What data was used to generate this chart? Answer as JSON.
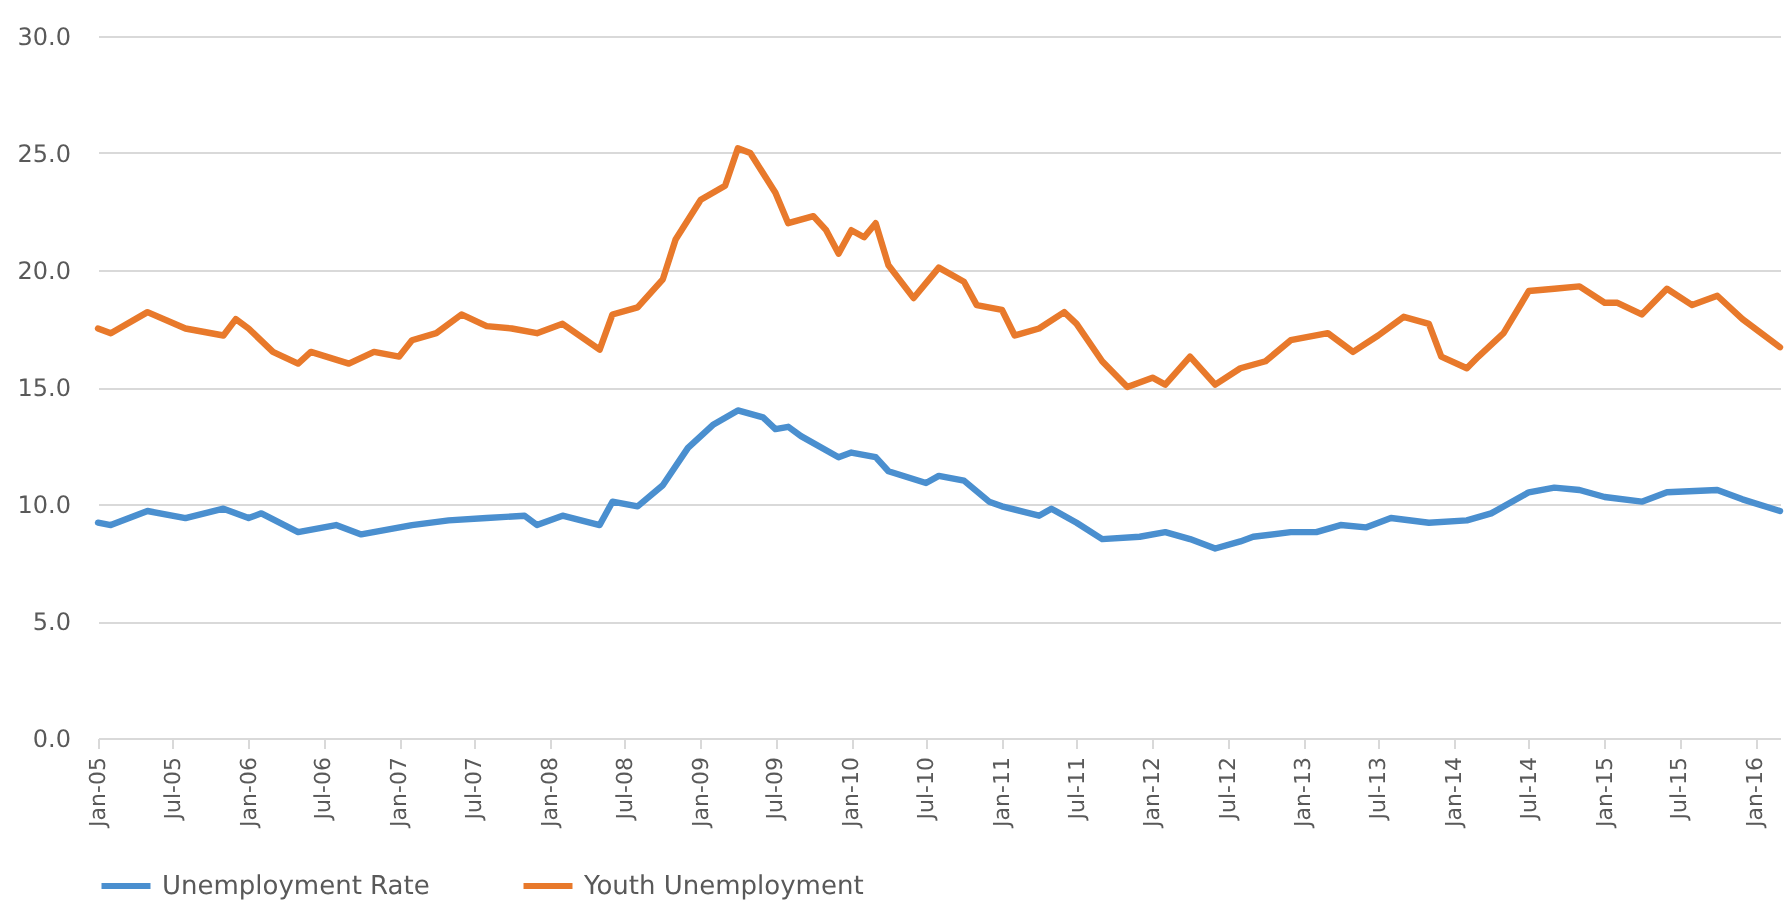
{
  "chart_data": {
    "type": "line",
    "xlim": [
      "2005-01",
      "2016-03"
    ],
    "xticks": [
      {
        "value": "2005-01",
        "label": "Jan-05"
      },
      {
        "value": "2005-07",
        "label": "Jul-05"
      },
      {
        "value": "2006-01",
        "label": "Jan-06"
      },
      {
        "value": "2006-07",
        "label": "Jul-06"
      },
      {
        "value": "2007-01",
        "label": "Jan-07"
      },
      {
        "value": "2007-07",
        "label": "Jul-07"
      },
      {
        "value": "2008-01",
        "label": "Jan-08"
      },
      {
        "value": "2008-07",
        "label": "Jul-08"
      },
      {
        "value": "2009-01",
        "label": "Jan-09"
      },
      {
        "value": "2009-07",
        "label": "Jul-09"
      },
      {
        "value": "2010-01",
        "label": "Jan-10"
      },
      {
        "value": "2010-07",
        "label": "Jul-10"
      },
      {
        "value": "2011-01",
        "label": "Jan-11"
      },
      {
        "value": "2011-07",
        "label": "Jul-11"
      },
      {
        "value": "2012-01",
        "label": "Jan-12"
      },
      {
        "value": "2012-07",
        "label": "Jul-12"
      },
      {
        "value": "2013-01",
        "label": "Jan-13"
      },
      {
        "value": "2013-07",
        "label": "Jul-13"
      },
      {
        "value": "2014-01",
        "label": "Jan-14"
      },
      {
        "value": "2014-07",
        "label": "Jul-14"
      },
      {
        "value": "2015-01",
        "label": "Jan-15"
      },
      {
        "value": "2015-07",
        "label": "Jul-15"
      },
      {
        "value": "2016-01",
        "label": "Jan-16"
      }
    ],
    "ylim": [
      0,
      30
    ],
    "yticks": [
      {
        "value": 0,
        "label": "0.0"
      },
      {
        "value": 5,
        "label": "5.0"
      },
      {
        "value": 10,
        "label": "10.0"
      },
      {
        "value": 15,
        "label": "15.0"
      },
      {
        "value": 20,
        "label": "20.0"
      },
      {
        "value": 25,
        "label": "25.0"
      },
      {
        "value": 30,
        "label": "30.0"
      }
    ],
    "grid": "y",
    "legend": "bottom",
    "series": [
      {
        "name": "Unemployment Rate",
        "color": "#4a8fcf",
        "x": [
          "2005-01",
          "2005-02",
          "2005-05",
          "2005-08",
          "2005-11",
          "2006-01",
          "2006-02",
          "2006-05",
          "2006-08",
          "2006-10",
          "2007-02",
          "2007-05",
          "2007-08",
          "2007-11",
          "2007-12",
          "2008-02",
          "2008-05",
          "2008-06",
          "2008-08",
          "2008-10",
          "2008-12",
          "2009-02",
          "2009-04",
          "2009-06",
          "2009-07",
          "2009-08",
          "2009-09",
          "2009-12",
          "2010-01",
          "2010-03",
          "2010-04",
          "2010-07",
          "2010-08",
          "2010-10",
          "2010-12",
          "2011-01",
          "2011-04",
          "2011-05",
          "2011-07",
          "2011-09",
          "2011-12",
          "2012-02",
          "2012-04",
          "2012-06",
          "2012-08",
          "2012-09",
          "2012-12",
          "2013-02",
          "2013-04",
          "2013-06",
          "2013-08",
          "2013-11",
          "2014-02",
          "2014-04",
          "2014-07",
          "2014-09",
          "2014-11",
          "2015-01",
          "2015-04",
          "2015-06",
          "2015-10",
          "2015-12",
          "2016-03"
        ],
        "values": [
          9.2,
          9.1,
          9.7,
          9.4,
          9.8,
          9.4,
          9.6,
          8.8,
          9.1,
          8.7,
          9.1,
          9.3,
          9.4,
          9.5,
          9.1,
          9.5,
          9.1,
          10.1,
          9.9,
          10.8,
          12.4,
          13.4,
          14.0,
          13.7,
          13.2,
          13.3,
          12.9,
          12.0,
          12.2,
          12.0,
          11.4,
          10.9,
          11.2,
          11.0,
          10.1,
          9.9,
          9.5,
          9.8,
          9.2,
          8.5,
          8.6,
          8.8,
          8.5,
          8.1,
          8.4,
          8.6,
          8.8,
          8.8,
          9.1,
          9.0,
          9.4,
          9.2,
          9.3,
          9.6,
          10.5,
          10.7,
          10.6,
          10.3,
          10.1,
          10.5,
          10.6,
          10.2,
          9.7
        ]
      },
      {
        "name": "Youth Unemployment",
        "color": "#e8792b",
        "x": [
          "2005-01",
          "2005-02",
          "2005-05",
          "2005-08",
          "2005-11",
          "2005-12",
          "2006-01",
          "2006-03",
          "2006-05",
          "2006-06",
          "2006-09",
          "2006-11",
          "2007-01",
          "2007-02",
          "2007-04",
          "2007-06",
          "2007-08",
          "2007-10",
          "2007-12",
          "2008-02",
          "2008-05",
          "2008-06",
          "2008-08",
          "2008-10",
          "2008-11",
          "2009-01",
          "2009-03",
          "2009-04",
          "2009-05",
          "2009-07",
          "2009-08",
          "2009-10",
          "2009-11",
          "2009-12",
          "2010-01",
          "2010-02",
          "2010-03",
          "2010-04",
          "2010-06",
          "2010-08",
          "2010-10",
          "2010-11",
          "2011-01",
          "2011-02",
          "2011-04",
          "2011-06",
          "2011-07",
          "2011-09",
          "2011-11",
          "2012-01",
          "2012-02",
          "2012-04",
          "2012-06",
          "2012-08",
          "2012-10",
          "2012-12",
          "2013-03",
          "2013-05",
          "2013-07",
          "2013-09",
          "2013-11",
          "2013-12",
          "2014-02",
          "2014-03",
          "2014-05",
          "2014-07",
          "2014-09",
          "2014-11",
          "2015-01",
          "2015-02",
          "2015-04",
          "2015-06",
          "2015-08",
          "2015-10",
          "2015-12",
          "2016-03"
        ],
        "values": [
          17.5,
          17.3,
          18.2,
          17.5,
          17.2,
          17.9,
          17.5,
          16.5,
          16.0,
          16.5,
          16.0,
          16.5,
          16.3,
          17.0,
          17.3,
          18.1,
          17.6,
          17.5,
          17.3,
          17.7,
          16.6,
          18.1,
          18.4,
          19.6,
          21.3,
          23.0,
          23.6,
          25.2,
          25.0,
          23.3,
          22.0,
          22.3,
          21.7,
          20.7,
          21.7,
          21.4,
          22.0,
          20.2,
          18.8,
          20.1,
          19.5,
          18.5,
          18.3,
          17.2,
          17.5,
          18.2,
          17.7,
          16.1,
          15.0,
          15.4,
          15.1,
          16.3,
          15.1,
          15.8,
          16.1,
          17.0,
          17.3,
          16.5,
          17.2,
          18.0,
          17.7,
          16.3,
          15.8,
          16.3,
          17.3,
          19.1,
          19.2,
          19.3,
          18.6,
          18.6,
          18.1,
          19.2,
          18.5,
          18.9,
          17.9,
          16.7
        ]
      }
    ]
  }
}
